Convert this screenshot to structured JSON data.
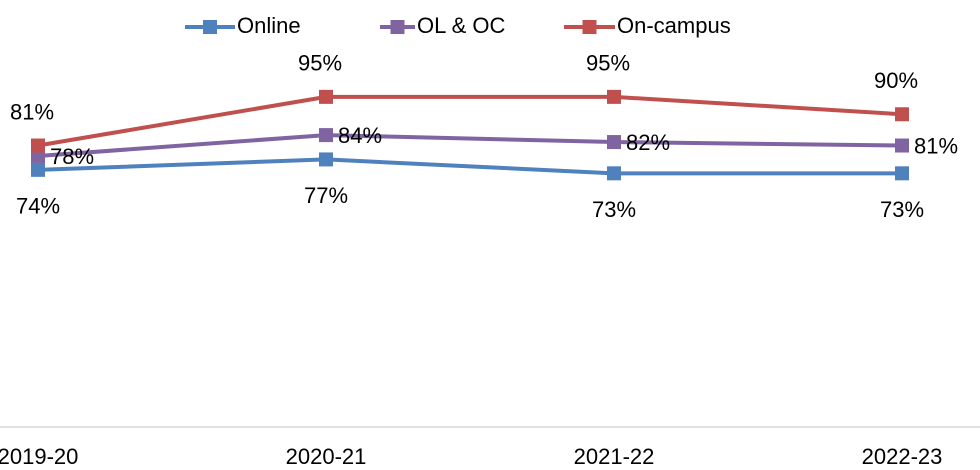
{
  "chart_data": {
    "type": "line",
    "categories": [
      "2019-20",
      "2020-21",
      "2021-22",
      "2022-23"
    ],
    "series": [
      {
        "name": "Online",
        "color": "#4f81bd",
        "values": [
          74,
          77,
          73,
          73
        ],
        "value_labels": [
          "74%",
          "77%",
          "73%",
          "73%"
        ]
      },
      {
        "name": "OL & OC",
        "color": "#8064a2",
        "values": [
          78,
          84,
          82,
          81
        ],
        "value_labels": [
          "78%",
          "84%",
          "82%",
          "81%"
        ]
      },
      {
        "name": "On-campus",
        "color": "#c0504d",
        "values": [
          81,
          95,
          95,
          90
        ],
        "value_labels": [
          "81%",
          "95%",
          "95%",
          "90%"
        ]
      }
    ],
    "ylim": [
      0,
      100
    ],
    "legend": "top"
  }
}
